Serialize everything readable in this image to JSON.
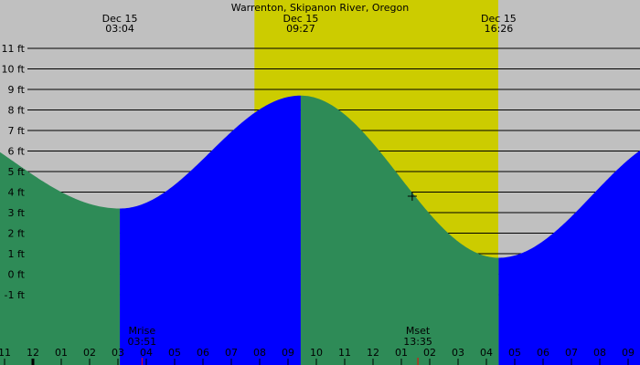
{
  "chart_data": {
    "type": "area",
    "title": "Warrenton, Skipanon River, Oregon",
    "y_unit": "ft",
    "ylim": [
      -1,
      11
    ],
    "y_ticks": [
      11,
      10,
      9,
      8,
      7,
      6,
      5,
      4,
      3,
      2,
      1,
      0,
      -1
    ],
    "y_tick_labels": [
      "11 ft",
      "10 ft",
      "9 ft",
      "8 ft",
      "7 ft",
      "6 ft",
      "5 ft",
      "4 ft",
      "3 ft",
      "2 ft",
      "1 ft",
      "0 ft",
      "-1 ft"
    ],
    "grid": true,
    "x_tick_labels": [
      "11",
      "12",
      "01",
      "02",
      "03",
      "04",
      "05",
      "06",
      "07",
      "08",
      "09",
      "10",
      "11",
      "12",
      "01",
      "02",
      "03",
      "04",
      "05",
      "06",
      "07",
      "08",
      "09"
    ],
    "x_hours_start": -1,
    "extremes": [
      {
        "date": "Dec 15",
        "time": "03:04",
        "type": "low",
        "height_ft": 3.2
      },
      {
        "date": "Dec 15",
        "time": "09:27",
        "type": "high",
        "height_ft": 8.7
      },
      {
        "date": "Dec 15",
        "time": "16:26",
        "type": "low",
        "height_ft": 0.8
      }
    ],
    "edge_heights_ft": {
      "left": 5.9,
      "right": 6.0
    },
    "daylight": {
      "start": "07:49",
      "end": "16:25"
    },
    "moon": [
      {
        "label": "Mrise",
        "time": "03:51"
      },
      {
        "label": "Mset",
        "time": "13:35"
      }
    ],
    "current_marker": {
      "time": "13:23",
      "height_ft": 3.8
    }
  },
  "colors": {
    "background": "#c0c0c0",
    "daylight": "#cccc00",
    "rising": "#0000ff",
    "falling": "#2e8b57",
    "moon_tick": "#ff0000"
  }
}
